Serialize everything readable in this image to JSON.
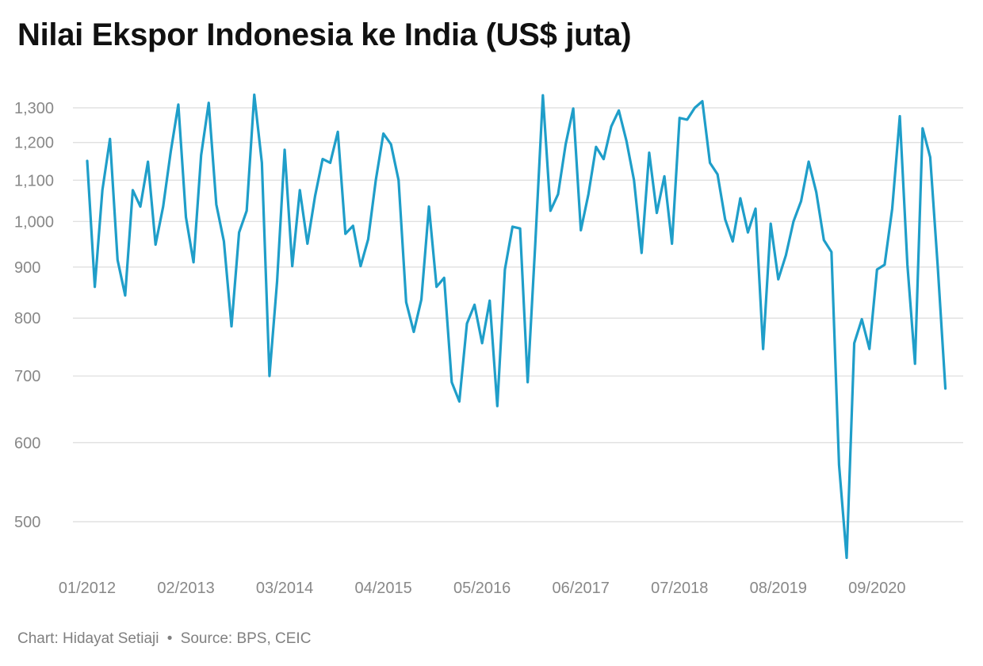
{
  "title": "Nilai Ekspor Indonesia ke India (US$ juta)",
  "credit": {
    "chart_by": "Chart: Hidayat Setiaji",
    "separator": "•",
    "source": "Source: BPS, CEIC"
  },
  "colors": {
    "line": "#1f9ec9",
    "grid": "#dcdcdc",
    "tick_text": "#888888"
  },
  "chart_data": {
    "type": "line",
    "title": "Nilai Ekspor Indonesia ke India (US$ juta)",
    "xlabel": "",
    "ylabel": "",
    "y_scale": "log",
    "ylim": [
      460,
      1360
    ],
    "grid": true,
    "legend": "none",
    "x_tick_labels": [
      "01/2012",
      "02/2013",
      "03/2014",
      "04/2015",
      "05/2016",
      "06/2017",
      "07/2018",
      "08/2019",
      "09/2020"
    ],
    "y_ticks": [
      500,
      600,
      700,
      800,
      900,
      1000,
      1100,
      1200,
      1300
    ],
    "y_tick_labels": [
      "500",
      "600",
      "700",
      "800",
      "900",
      "1,000",
      "1,100",
      "1,200",
      "1,300"
    ],
    "x": [
      "01/2012",
      "02/2012",
      "03/2012",
      "04/2012",
      "05/2012",
      "06/2012",
      "07/2012",
      "08/2012",
      "09/2012",
      "10/2012",
      "11/2012",
      "12/2012",
      "01/2013",
      "02/2013",
      "03/2013",
      "04/2013",
      "05/2013",
      "06/2013",
      "07/2013",
      "08/2013",
      "09/2013",
      "10/2013",
      "11/2013",
      "12/2013",
      "01/2014",
      "02/2014",
      "03/2014",
      "04/2014",
      "05/2014",
      "06/2014",
      "07/2014",
      "08/2014",
      "09/2014",
      "10/2014",
      "11/2014",
      "12/2014",
      "01/2015",
      "02/2015",
      "03/2015",
      "04/2015",
      "05/2015",
      "06/2015",
      "07/2015",
      "08/2015",
      "09/2015",
      "10/2015",
      "11/2015",
      "12/2015",
      "01/2016",
      "02/2016",
      "03/2016",
      "04/2016",
      "05/2016",
      "06/2016",
      "07/2016",
      "08/2016",
      "09/2016",
      "10/2016",
      "11/2016",
      "12/2016",
      "01/2017",
      "02/2017",
      "03/2017",
      "04/2017",
      "05/2017",
      "06/2017",
      "07/2017",
      "08/2017",
      "09/2017",
      "10/2017",
      "11/2017",
      "12/2017",
      "01/2018",
      "02/2018",
      "03/2018",
      "04/2018",
      "05/2018",
      "06/2018",
      "07/2018",
      "08/2018",
      "09/2018",
      "10/2018",
      "11/2018",
      "12/2018",
      "01/2019",
      "02/2019",
      "03/2019",
      "04/2019",
      "05/2019",
      "06/2019",
      "07/2019",
      "08/2019",
      "09/2019",
      "10/2019",
      "11/2019",
      "12/2019",
      "01/2020",
      "02/2020",
      "03/2020",
      "04/2020",
      "05/2020",
      "06/2020",
      "07/2020",
      "08/2020",
      "09/2020",
      "10/2020",
      "11/2020",
      "12/2020",
      "01/2021",
      "02/2021",
      "03/2021",
      "04/2021",
      "05/2021",
      "06/2021"
    ],
    "series": [
      {
        "values": [
          1150,
          860,
          1075,
          1210,
          915,
          843,
          1075,
          1035,
          1148,
          948,
          1035,
          1175,
          1310,
          1010,
          910,
          1165,
          1315,
          1040,
          955,
          785,
          975,
          1025,
          1340,
          1145,
          700,
          870,
          1180,
          902,
          1075,
          950,
          1060,
          1155,
          1145,
          1230,
          972,
          990,
          902,
          960,
          1100,
          1225,
          1195,
          1100,
          830,
          775,
          835,
          1035,
          860,
          878,
          690,
          660,
          790,
          825,
          755,
          833,
          653,
          895,
          988,
          984,
          690,
          950,
          1338,
          1025,
          1065,
          1195,
          1298,
          980,
          1065,
          1188,
          1155,
          1245,
          1292,
          1205,
          1100,
          930,
          1172,
          1020,
          1110,
          950,
          1270,
          1265,
          1300,
          1320,
          1145,
          1115,
          1005,
          955,
          1055,
          975,
          1030,
          745,
          995,
          875,
          925,
          1000,
          1048,
          1148,
          1070,
          958,
          932,
          570,
          460,
          755,
          798,
          745,
          895,
          905,
          1030,
          1275,
          905,
          720,
          1240,
          1160,
          900,
          680
        ]
      }
    ]
  }
}
